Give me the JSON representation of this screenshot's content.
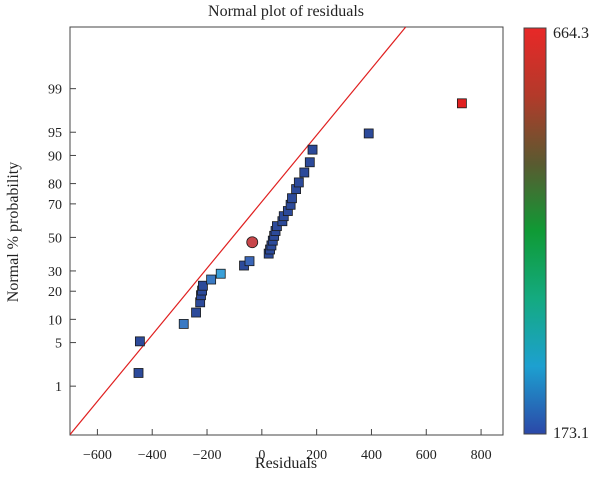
{
  "chart_data": {
    "type": "scatter",
    "title": "Normal plot of residuals",
    "xlabel": "Residuals",
    "ylabel": "Normal % probability",
    "xlim": [
      -700,
      880
    ],
    "x_ticks": [
      -600,
      -400,
      -200,
      0,
      200,
      400,
      600,
      800
    ],
    "y_scale": "normal-probability",
    "ylim_percent": [
      0.1,
      99.95
    ],
    "y_ticks": [
      1,
      5,
      10,
      20,
      30,
      50,
      70,
      80,
      90,
      95,
      99
    ],
    "reference_line": {
      "from": [
        -700,
        0.102
      ],
      "to": [
        525,
        99.95
      ],
      "color": "#e02020"
    },
    "colorbar": {
      "max_label": "664.3",
      "min_label": "173.1",
      "max_color": "#e02020",
      "min_color": "#2b48a8",
      "gradient": [
        "#e82828",
        "#b33a2a",
        "#5a5a30",
        "#0f9a35",
        "#14aa80",
        "#1da0d0",
        "#2b48a8"
      ]
    },
    "points": [
      {
        "x": -450,
        "y": 1.7,
        "color": "#2c4a9a",
        "shape": "square"
      },
      {
        "x": -445,
        "y": 5.2,
        "color": "#2c4a9a",
        "shape": "square"
      },
      {
        "x": -285,
        "y": 8.8,
        "color": "#3a7ac4",
        "shape": "square"
      },
      {
        "x": -240,
        "y": 12.0,
        "color": "#2c4a9a",
        "shape": "square"
      },
      {
        "x": -225,
        "y": 15.5,
        "color": "#2c4a9a",
        "shape": "square"
      },
      {
        "x": -222,
        "y": 18.3,
        "color": "#2c4a9a",
        "shape": "square"
      },
      {
        "x": -218,
        "y": 20.3,
        "color": "#2c4a9a",
        "shape": "square"
      },
      {
        "x": -215,
        "y": 22.5,
        "color": "#2c4a9a",
        "shape": "square"
      },
      {
        "x": -185,
        "y": 25.5,
        "color": "#3a7ac4",
        "shape": "square"
      },
      {
        "x": -150,
        "y": 28.5,
        "color": "#3aa0d8",
        "shape": "square"
      },
      {
        "x": -65,
        "y": 33.0,
        "color": "#2c4a9a",
        "shape": "square"
      },
      {
        "x": -45,
        "y": 35.5,
        "color": "#3a66b8",
        "shape": "square"
      },
      {
        "x": -35,
        "y": 47.0,
        "color": "#c8464a",
        "shape": "circle"
      },
      {
        "x": 25,
        "y": 40.0,
        "color": "#2c4a9a",
        "shape": "square"
      },
      {
        "x": 30,
        "y": 42.5,
        "color": "#2c4a9a",
        "shape": "square"
      },
      {
        "x": 35,
        "y": 45.0,
        "color": "#2c4a9a",
        "shape": "square"
      },
      {
        "x": 40,
        "y": 48.0,
        "color": "#2c4a9a",
        "shape": "square"
      },
      {
        "x": 45,
        "y": 51.0,
        "color": "#2c4a9a",
        "shape": "square"
      },
      {
        "x": 50,
        "y": 54.0,
        "color": "#2c4a9a",
        "shape": "square"
      },
      {
        "x": 55,
        "y": 57.0,
        "color": "#2c4a9a",
        "shape": "square"
      },
      {
        "x": 75,
        "y": 60.0,
        "color": "#2c4a9a",
        "shape": "square"
      },
      {
        "x": 80,
        "y": 63.0,
        "color": "#2c4a9a",
        "shape": "square"
      },
      {
        "x": 95,
        "y": 66.0,
        "color": "#2c4a9a",
        "shape": "square"
      },
      {
        "x": 105,
        "y": 69.5,
        "color": "#2c4a9a",
        "shape": "square"
      },
      {
        "x": 110,
        "y": 73.0,
        "color": "#2c4a9a",
        "shape": "square"
      },
      {
        "x": 125,
        "y": 77.5,
        "color": "#2c4a9a",
        "shape": "square"
      },
      {
        "x": 135,
        "y": 80.5,
        "color": "#2c4a9a",
        "shape": "square"
      },
      {
        "x": 155,
        "y": 84.5,
        "color": "#2c4a9a",
        "shape": "square"
      },
      {
        "x": 175,
        "y": 88.0,
        "color": "#2c4a9a",
        "shape": "square"
      },
      {
        "x": 185,
        "y": 91.5,
        "color": "#2c4a9a",
        "shape": "square"
      },
      {
        "x": 390,
        "y": 94.8,
        "color": "#2c4a9a",
        "shape": "square"
      },
      {
        "x": 730,
        "y": 98.2,
        "color": "#e02020",
        "shape": "square"
      }
    ]
  }
}
